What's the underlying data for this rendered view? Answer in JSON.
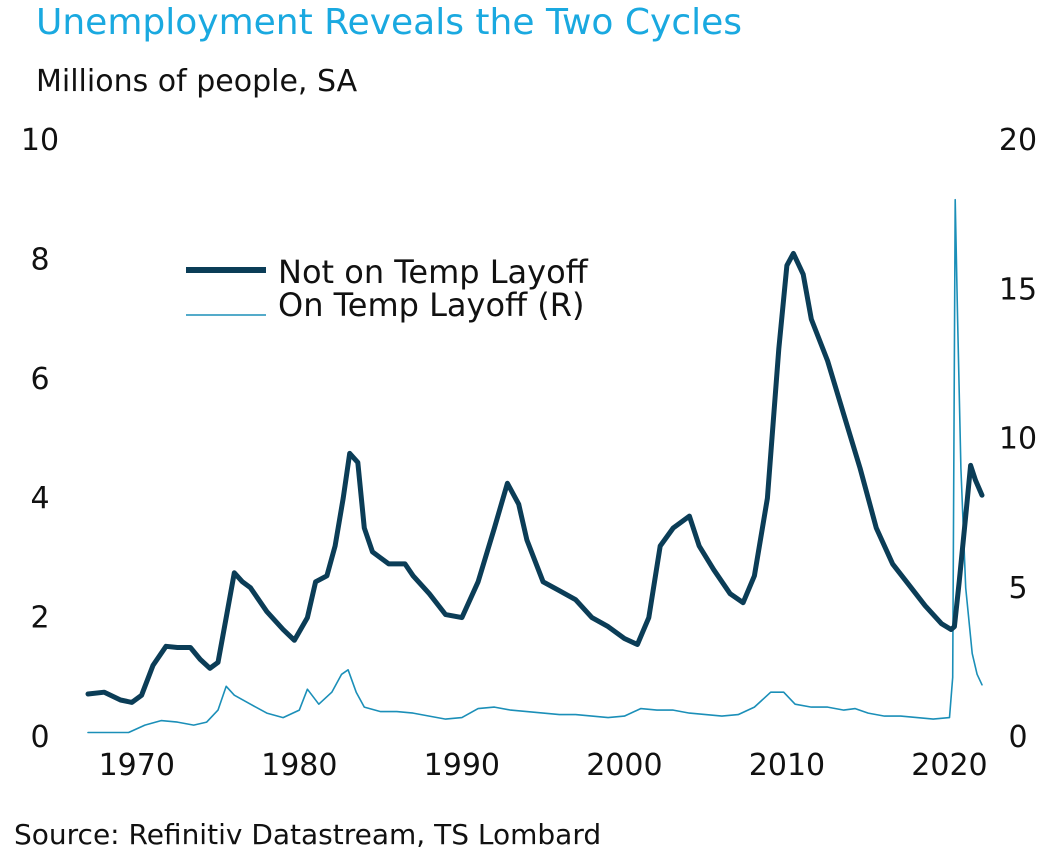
{
  "header": {
    "title": "Unemployment Reveals the Two Cycles",
    "subtitle": "Millions of people, SA"
  },
  "footer": {
    "source": "Source: Refinitiv Datastream, TS Lombard"
  },
  "colors": {
    "title": "#1aa9e0",
    "series_primary": "#0b3d57",
    "series_secondary": "#1b8fb8"
  },
  "chart_data": {
    "type": "line",
    "title": "Unemployment Reveals the Two Cycles",
    "subtitle": "Millions of people, SA",
    "xlim": [
      1967,
      2022
    ],
    "x_ticks": [
      "1970",
      "1980",
      "1990",
      "2000",
      "2010",
      "2020"
    ],
    "y_left": {
      "lim": [
        0,
        10
      ],
      "ticks": [
        "0",
        "2",
        "4",
        "6",
        "8",
        "10"
      ]
    },
    "y_right": {
      "lim": [
        0,
        20
      ],
      "ticks": [
        "0",
        "5",
        "10",
        "15",
        "20"
      ]
    },
    "grid": false,
    "legend_position": "top-left",
    "series": [
      {
        "name": "Not on Temp Layoff",
        "axis": "left",
        "color": "#0b3d57",
        "points": [
          [
            1967.0,
            0.72
          ],
          [
            1968.0,
            0.75
          ],
          [
            1969.0,
            0.62
          ],
          [
            1969.7,
            0.58
          ],
          [
            1970.3,
            0.7
          ],
          [
            1971.0,
            1.2
          ],
          [
            1971.8,
            1.52
          ],
          [
            1972.5,
            1.5
          ],
          [
            1973.3,
            1.5
          ],
          [
            1973.9,
            1.3
          ],
          [
            1974.5,
            1.15
          ],
          [
            1975.0,
            1.25
          ],
          [
            1975.5,
            2.0
          ],
          [
            1976.0,
            2.75
          ],
          [
            1976.5,
            2.6
          ],
          [
            1977.0,
            2.5
          ],
          [
            1978.0,
            2.1
          ],
          [
            1979.0,
            1.8
          ],
          [
            1979.7,
            1.62
          ],
          [
            1980.5,
            2.0
          ],
          [
            1981.0,
            2.6
          ],
          [
            1981.7,
            2.7
          ],
          [
            1982.2,
            3.2
          ],
          [
            1982.7,
            4.0
          ],
          [
            1983.1,
            4.75
          ],
          [
            1983.6,
            4.6
          ],
          [
            1984.0,
            3.5
          ],
          [
            1984.5,
            3.1
          ],
          [
            1985.5,
            2.9
          ],
          [
            1986.5,
            2.9
          ],
          [
            1987.0,
            2.7
          ],
          [
            1988.0,
            2.4
          ],
          [
            1989.0,
            2.05
          ],
          [
            1990.0,
            2.0
          ],
          [
            1991.0,
            2.6
          ],
          [
            1992.0,
            3.5
          ],
          [
            1992.8,
            4.25
          ],
          [
            1993.5,
            3.9
          ],
          [
            1994.0,
            3.3
          ],
          [
            1995.0,
            2.6
          ],
          [
            1996.0,
            2.45
          ],
          [
            1997.0,
            2.3
          ],
          [
            1998.0,
            2.0
          ],
          [
            1999.0,
            1.85
          ],
          [
            2000.0,
            1.65
          ],
          [
            2000.8,
            1.55
          ],
          [
            2001.5,
            2.0
          ],
          [
            2002.2,
            3.2
          ],
          [
            2003.0,
            3.5
          ],
          [
            2004.0,
            3.7
          ],
          [
            2004.6,
            3.2
          ],
          [
            2005.5,
            2.8
          ],
          [
            2006.5,
            2.4
          ],
          [
            2007.3,
            2.25
          ],
          [
            2008.0,
            2.7
          ],
          [
            2008.8,
            4.0
          ],
          [
            2009.5,
            6.5
          ],
          [
            2010.0,
            7.9
          ],
          [
            2010.4,
            8.1
          ],
          [
            2011.0,
            7.75
          ],
          [
            2011.5,
            7.0
          ],
          [
            2012.5,
            6.3
          ],
          [
            2013.5,
            5.4
          ],
          [
            2014.5,
            4.5
          ],
          [
            2015.5,
            3.5
          ],
          [
            2016.5,
            2.9
          ],
          [
            2017.5,
            2.55
          ],
          [
            2018.5,
            2.2
          ],
          [
            2019.5,
            1.9
          ],
          [
            2020.1,
            1.8
          ],
          [
            2020.3,
            1.85
          ],
          [
            2020.6,
            2.6
          ],
          [
            2021.0,
            3.7
          ],
          [
            2021.3,
            4.55
          ],
          [
            2021.6,
            4.3
          ],
          [
            2022.0,
            4.05
          ]
        ]
      },
      {
        "name": "On Temp Layoff (R)",
        "axis": "right",
        "color": "#1b8fb8",
        "points": [
          [
            1967.0,
            0.15
          ],
          [
            1969.5,
            0.15
          ],
          [
            1970.5,
            0.4
          ],
          [
            1971.5,
            0.55
          ],
          [
            1972.5,
            0.5
          ],
          [
            1973.5,
            0.4
          ],
          [
            1974.3,
            0.5
          ],
          [
            1975.0,
            0.9
          ],
          [
            1975.5,
            1.7
          ],
          [
            1976.0,
            1.4
          ],
          [
            1977.0,
            1.1
          ],
          [
            1978.0,
            0.8
          ],
          [
            1979.0,
            0.65
          ],
          [
            1980.0,
            0.9
          ],
          [
            1980.5,
            1.6
          ],
          [
            1981.2,
            1.1
          ],
          [
            1982.0,
            1.5
          ],
          [
            1982.6,
            2.1
          ],
          [
            1983.0,
            2.25
          ],
          [
            1983.5,
            1.5
          ],
          [
            1984.0,
            1.0
          ],
          [
            1985.0,
            0.85
          ],
          [
            1986.0,
            0.85
          ],
          [
            1987.0,
            0.8
          ],
          [
            1988.0,
            0.7
          ],
          [
            1989.0,
            0.6
          ],
          [
            1990.0,
            0.65
          ],
          [
            1991.0,
            0.95
          ],
          [
            1992.0,
            1.0
          ],
          [
            1993.0,
            0.9
          ],
          [
            1994.0,
            0.85
          ],
          [
            1995.0,
            0.8
          ],
          [
            1996.0,
            0.75
          ],
          [
            1997.0,
            0.75
          ],
          [
            1998.0,
            0.7
          ],
          [
            1999.0,
            0.65
          ],
          [
            2000.0,
            0.7
          ],
          [
            2001.0,
            0.95
          ],
          [
            2002.0,
            0.9
          ],
          [
            2003.0,
            0.9
          ],
          [
            2004.0,
            0.8
          ],
          [
            2005.0,
            0.75
          ],
          [
            2006.0,
            0.7
          ],
          [
            2007.0,
            0.75
          ],
          [
            2008.0,
            1.0
          ],
          [
            2009.0,
            1.5
          ],
          [
            2009.8,
            1.5
          ],
          [
            2010.5,
            1.1
          ],
          [
            2011.5,
            1.0
          ],
          [
            2012.5,
            1.0
          ],
          [
            2013.5,
            0.9
          ],
          [
            2014.2,
            0.95
          ],
          [
            2015.0,
            0.8
          ],
          [
            2016.0,
            0.7
          ],
          [
            2017.0,
            0.7
          ],
          [
            2018.0,
            0.65
          ],
          [
            2019.0,
            0.6
          ],
          [
            2020.0,
            0.65
          ],
          [
            2020.2,
            2.0
          ],
          [
            2020.35,
            18.0
          ],
          [
            2020.5,
            14.0
          ],
          [
            2020.7,
            9.0
          ],
          [
            2021.0,
            5.0
          ],
          [
            2021.4,
            2.8
          ],
          [
            2021.7,
            2.1
          ],
          [
            2022.0,
            1.75
          ]
        ]
      }
    ]
  }
}
